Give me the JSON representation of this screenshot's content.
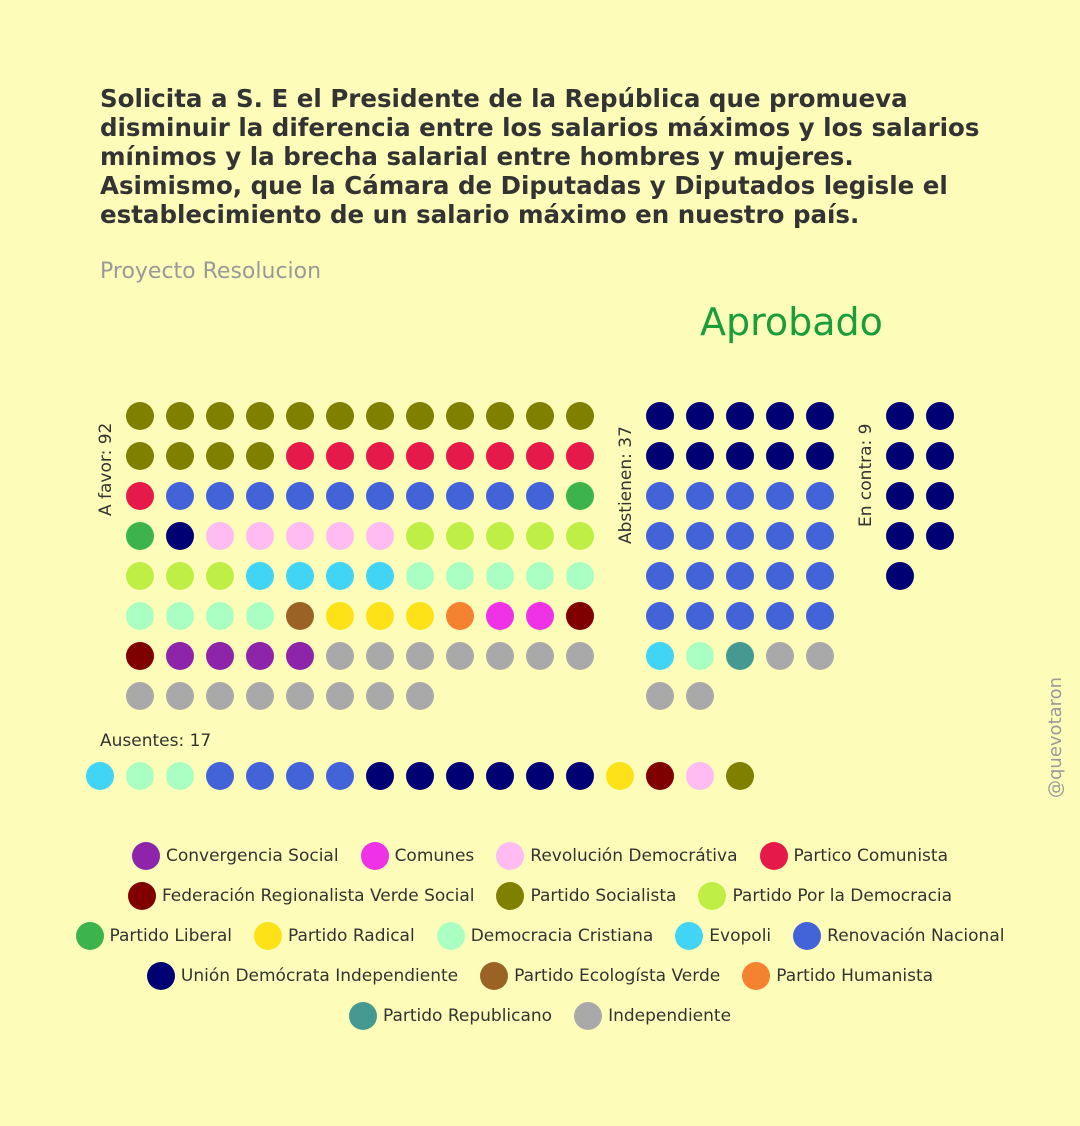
{
  "header": {
    "title": "Solicita a S. E el Presidente de la República que promueva disminuir la diferencia entre los salarios máximos y los salarios mínimos y la brecha salarial entre hombres y mujeres. Asimismo, que la Cámara de Diputadas y Diputados legisle el establecimiento de un salario máximo en nuestro país.",
    "subtitle": "Proyecto Resolucion",
    "result": "Aprobado",
    "credit": "@quevotaron"
  },
  "colors": {
    "Convergencia Social": "#8E24AA",
    "Comunes": "#F032E6",
    "Revolución Democrátiva": "#FFBCF2",
    "Partico Comunista": "#E6194B",
    "Federación Regionalista Verde Social": "#800000",
    "Partido Socialista": "#808000",
    "Partido Por la Democracia": "#BFEF45",
    "Partido Liberal": "#3CB44B",
    "Partido Radical": "#FFE119",
    "Democracia Cristiana": "#AAFFC3",
    "Evopoli": "#42D4F4",
    "Renovación Nacional": "#4363D8",
    "Unión Demócrata Independiente": "#000075",
    "Partido Ecologísta Verde": "#9A6324",
    "Partido Humanista": "#F58231",
    "Partido Republicano": "#469990",
    "Independiente": "#A9A9A9",
    "accent_result": "#1a9e3a"
  },
  "chart_data": {
    "type": "waffle",
    "title": "Solicita a S. E el Presidente de la República que promueva disminuir la diferencia entre los salarios máximos y los salarios mínimos y la brecha salarial entre hombres y mujeres. Asimismo, que la Cámara de Diputadas y Diputados legisle el establecimiento de un salario máximo en nuestro país.",
    "groups": [
      {
        "label": "A favor: 92",
        "total": 92,
        "counts": [
          {
            "party": "Partido Socialista",
            "n": 16
          },
          {
            "party": "Partico Comunista",
            "n": 9
          },
          {
            "party": "Renovación Nacional",
            "n": 10
          },
          {
            "party": "Partido Liberal",
            "n": 2
          },
          {
            "party": "Unión Demócrata Independiente",
            "n": 1
          },
          {
            "party": "Revolución Democrátiva",
            "n": 5
          },
          {
            "party": "Partido Por la Democracia",
            "n": 8
          },
          {
            "party": "Evopoli",
            "n": 4
          },
          {
            "party": "Democracia Cristiana",
            "n": 9
          },
          {
            "party": "Partido Ecologísta Verde",
            "n": 1
          },
          {
            "party": "Partido Radical",
            "n": 3
          },
          {
            "party": "Partido Humanista",
            "n": 1
          },
          {
            "party": "Comunes",
            "n": 2
          },
          {
            "party": "Federación Regionalista Verde Social",
            "n": 2
          },
          {
            "party": "Convergencia Social",
            "n": 4
          },
          {
            "party": "Independiente",
            "n": 15
          }
        ]
      },
      {
        "label": "Abstienen: 37",
        "total": 37,
        "counts": [
          {
            "party": "Unión Demócrata Independiente",
            "n": 10
          },
          {
            "party": "Renovación Nacional",
            "n": 20
          },
          {
            "party": "Evopoli",
            "n": 1
          },
          {
            "party": "Democracia Cristiana",
            "n": 1
          },
          {
            "party": "Partido Republicano",
            "n": 1
          },
          {
            "party": "Independiente",
            "n": 4
          }
        ]
      },
      {
        "label": "En contra: 9",
        "total": 9,
        "counts": [
          {
            "party": "Unión Demócrata Independiente",
            "n": 9
          }
        ]
      },
      {
        "label": "Ausentes: 17",
        "total": 17,
        "counts": [
          {
            "party": "Evopoli",
            "n": 1
          },
          {
            "party": "Democracia Cristiana",
            "n": 2
          },
          {
            "party": "Renovación Nacional",
            "n": 4
          },
          {
            "party": "Unión Demócrata Independiente",
            "n": 6
          },
          {
            "party": "Partido Radical",
            "n": 1
          },
          {
            "party": "Federación Regionalista Verde Social",
            "n": 1
          },
          {
            "party": "Revolución Democrátiva",
            "n": 1
          },
          {
            "party": "Partido Socialista",
            "n": 1
          }
        ]
      }
    ],
    "legend": [
      [
        "Convergencia Social",
        "Comunes",
        "Revolución Democrátiva",
        "Partico Comunista"
      ],
      [
        "Federación Regionalista Verde Social",
        "Partido Socialista",
        "Partido Por la Democracia"
      ],
      [
        "Partido Liberal",
        "Partido Radical",
        "Democracia Cristiana",
        "Evopoli",
        "Renovación Nacional"
      ],
      [
        "Unión Demócrata Independiente",
        "Partido Ecologísta Verde",
        "Partido Humanista"
      ],
      [
        "Partido Republicano",
        "Independiente"
      ]
    ]
  }
}
